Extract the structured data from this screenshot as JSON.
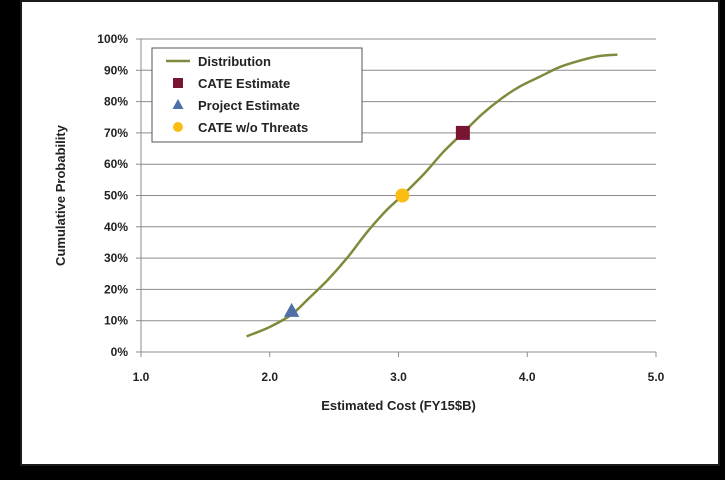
{
  "chart_data": {
    "type": "line",
    "title": "",
    "xlabel": "Estimated Cost (FY15$B)",
    "ylabel": "Cumulative Probability",
    "xlim": [
      1.0,
      5.0
    ],
    "ylim": [
      0,
      100
    ],
    "x_ticks": [
      "1.0",
      "2.0",
      "3.0",
      "4.0",
      "5.0"
    ],
    "y_ticks": [
      "0%",
      "10%",
      "20%",
      "30%",
      "40%",
      "50%",
      "60%",
      "70%",
      "80%",
      "90%",
      "100%"
    ],
    "grid": "horizontal",
    "legend_position": "top-left",
    "series": [
      {
        "name": "Distribution",
        "type": "line",
        "color": "#7f8a3c",
        "x": [
          1.82,
          2.0,
          2.17,
          2.3,
          2.45,
          2.6,
          2.75,
          2.9,
          3.03,
          3.2,
          3.35,
          3.5,
          3.65,
          3.8,
          3.95,
          4.1,
          4.25,
          4.4,
          4.55,
          4.7
        ],
        "y": [
          5,
          8,
          12,
          17,
          23,
          30,
          38,
          45,
          50,
          57,
          64,
          70,
          76,
          81,
          85,
          88,
          91,
          93,
          94.5,
          95
        ]
      },
      {
        "name": "CATE Estimate",
        "type": "marker",
        "marker": "square",
        "color": "#7a1433",
        "x": [
          3.5
        ],
        "y": [
          70
        ]
      },
      {
        "name": "Project Estimate",
        "type": "marker",
        "marker": "triangle",
        "color": "#4f6fa8",
        "x": [
          2.17
        ],
        "y": [
          13
        ]
      },
      {
        "name": "CATE w/o Threats",
        "type": "marker",
        "marker": "circle",
        "color": "#fbbd12",
        "x": [
          3.03
        ],
        "y": [
          50
        ]
      }
    ]
  }
}
